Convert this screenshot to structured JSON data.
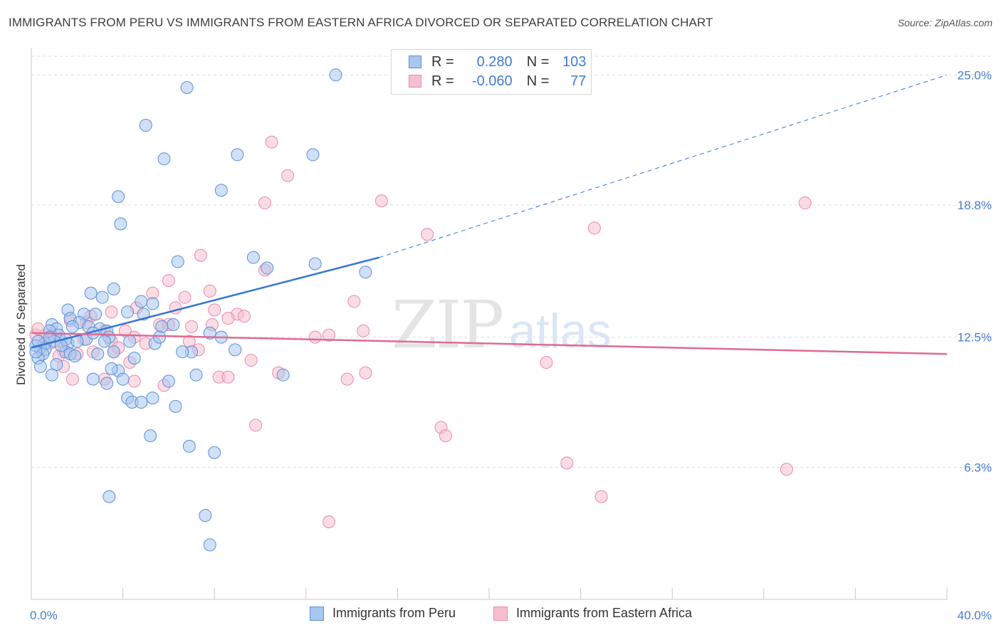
{
  "title": "IMMIGRANTS FROM PERU VS IMMIGRANTS FROM EASTERN AFRICA DIVORCED OR SEPARATED CORRELATION CHART",
  "source": "Source: ZipAtlas.com",
  "watermark": {
    "zip": "ZIP",
    "atlas": "atlas"
  },
  "legend": {
    "r_label": "R =",
    "n_label": "N =",
    "series1": {
      "r": "0.280",
      "n": "103"
    },
    "series2": {
      "r": "-0.060",
      "n": "77"
    }
  },
  "colors": {
    "peru_fill": "#a9c6ee",
    "peru_stroke": "#5a8fd8",
    "peru_line": "#3574d4",
    "africa_fill": "#f6bfd0",
    "africa_stroke": "#e88aa8",
    "africa_line": "#e06a93",
    "axis_text": "#4a7bd0",
    "grid": "#dcdcdc"
  },
  "chart_data": {
    "type": "scatter",
    "title": "IMMIGRANTS FROM PERU VS IMMIGRANTS FROM EASTERN AFRICA DIVORCED OR SEPARATED CORRELATION CHART",
    "xlabel": "",
    "ylabel": "Divorced or Separated",
    "xlim": [
      0,
      40
    ],
    "ylim": [
      0,
      26.3
    ],
    "x_tick_labels": [
      "0.0%",
      "40.0%"
    ],
    "y_ticks": [
      6.3,
      12.5,
      18.8,
      25.0
    ],
    "y_tick_labels": [
      "6.3%",
      "12.5%",
      "18.8%",
      "25.0%"
    ],
    "grid": true,
    "legend_position": "top-center",
    "series": [
      {
        "name": "Immigrants from Peru",
        "R": 0.28,
        "N": 103,
        "trend": {
          "x": [
            0,
            15.2
          ],
          "y": [
            12.0,
            16.3
          ],
          "dashed_to": [
            40,
            25.0
          ]
        },
        "points": [
          [
            13.3,
            25.0
          ],
          [
            6.8,
            24.4
          ],
          [
            5.0,
            22.6
          ],
          [
            5.8,
            21.0
          ],
          [
            9.0,
            21.2
          ],
          [
            12.3,
            21.2
          ],
          [
            8.3,
            19.5
          ],
          [
            3.8,
            19.2
          ],
          [
            3.9,
            17.9
          ],
          [
            6.4,
            16.1
          ],
          [
            9.7,
            16.3
          ],
          [
            10.3,
            15.8
          ],
          [
            12.4,
            16.0
          ],
          [
            14.6,
            15.6
          ],
          [
            3.6,
            14.8
          ],
          [
            2.6,
            14.6
          ],
          [
            3.1,
            14.4
          ],
          [
            4.8,
            14.2
          ],
          [
            5.3,
            14.1
          ],
          [
            4.2,
            13.7
          ],
          [
            1.6,
            13.8
          ],
          [
            2.3,
            13.6
          ],
          [
            2.8,
            13.6
          ],
          [
            1.7,
            13.4
          ],
          [
            2.1,
            13.2
          ],
          [
            1.8,
            13.0
          ],
          [
            2.5,
            13.0
          ],
          [
            0.9,
            13.1
          ],
          [
            1.1,
            12.9
          ],
          [
            0.8,
            12.8
          ],
          [
            3.0,
            12.9
          ],
          [
            3.3,
            12.8
          ],
          [
            5.7,
            13.0
          ],
          [
            6.2,
            13.1
          ],
          [
            7.8,
            12.7
          ],
          [
            1.2,
            12.6
          ],
          [
            1.5,
            12.4
          ],
          [
            2.4,
            12.4
          ],
          [
            3.4,
            12.5
          ],
          [
            1.0,
            12.3
          ],
          [
            1.6,
            12.2
          ],
          [
            0.6,
            12.2
          ],
          [
            2.0,
            12.3
          ],
          [
            3.2,
            12.3
          ],
          [
            4.3,
            12.3
          ],
          [
            5.4,
            12.2
          ],
          [
            5.6,
            12.5
          ],
          [
            8.3,
            12.5
          ],
          [
            0.4,
            12.0
          ],
          [
            0.2,
            12.1
          ],
          [
            0.6,
            11.9
          ],
          [
            1.5,
            11.8
          ],
          [
            1.7,
            11.7
          ],
          [
            2.9,
            11.7
          ],
          [
            3.6,
            11.8
          ],
          [
            0.5,
            11.7
          ],
          [
            0.3,
            11.5
          ],
          [
            7.0,
            11.8
          ],
          [
            6.6,
            11.8
          ],
          [
            8.9,
            11.9
          ],
          [
            4.5,
            11.5
          ],
          [
            1.1,
            11.2
          ],
          [
            0.4,
            11.1
          ],
          [
            3.8,
            10.9
          ],
          [
            3.5,
            11.0
          ],
          [
            7.2,
            10.7
          ],
          [
            11.0,
            10.7
          ],
          [
            0.9,
            10.7
          ],
          [
            2.7,
            10.5
          ],
          [
            4.0,
            10.5
          ],
          [
            6.0,
            10.4
          ],
          [
            3.3,
            10.3
          ],
          [
            4.2,
            9.6
          ],
          [
            5.3,
            9.6
          ],
          [
            4.4,
            9.4
          ],
          [
            4.8,
            9.4
          ],
          [
            6.3,
            9.2
          ],
          [
            5.2,
            7.8
          ],
          [
            6.9,
            7.3
          ],
          [
            8.0,
            7.0
          ],
          [
            3.4,
            4.9
          ],
          [
            7.6,
            4.0
          ],
          [
            7.8,
            2.6
          ],
          [
            0.3,
            12.3
          ],
          [
            1.3,
            12.1
          ],
          [
            2.7,
            12.7
          ],
          [
            4.9,
            13.6
          ],
          [
            0.8,
            12.5
          ],
          [
            0.2,
            11.8
          ],
          [
            1.9,
            11.6
          ]
        ]
      },
      {
        "name": "Immigrants from Eastern Africa",
        "R": -0.06,
        "N": 77,
        "trend": {
          "x": [
            0,
            40
          ],
          "y": [
            12.7,
            11.7
          ]
        },
        "points": [
          [
            10.5,
            21.8
          ],
          [
            11.2,
            20.2
          ],
          [
            15.3,
            19.0
          ],
          [
            10.2,
            18.9
          ],
          [
            33.8,
            18.9
          ],
          [
            17.3,
            17.4
          ],
          [
            24.6,
            17.7
          ],
          [
            7.4,
            16.4
          ],
          [
            10.2,
            15.7
          ],
          [
            6.0,
            15.2
          ],
          [
            7.8,
            14.7
          ],
          [
            5.3,
            14.6
          ],
          [
            6.7,
            14.4
          ],
          [
            14.1,
            14.2
          ],
          [
            4.6,
            13.9
          ],
          [
            6.3,
            13.9
          ],
          [
            8.0,
            13.8
          ],
          [
            9.0,
            13.6
          ],
          [
            9.3,
            13.5
          ],
          [
            8.6,
            13.4
          ],
          [
            3.5,
            13.7
          ],
          [
            2.6,
            13.5
          ],
          [
            1.7,
            13.3
          ],
          [
            2.4,
            13.2
          ],
          [
            5.6,
            13.1
          ],
          [
            6.0,
            13.1
          ],
          [
            7.0,
            13.0
          ],
          [
            7.9,
            13.1
          ],
          [
            4.1,
            12.8
          ],
          [
            3.2,
            12.8
          ],
          [
            14.5,
            12.8
          ],
          [
            13.0,
            12.6
          ],
          [
            0.6,
            12.6
          ],
          [
            0.9,
            12.5
          ],
          [
            4.5,
            12.5
          ],
          [
            0.2,
            12.6
          ],
          [
            1.3,
            12.3
          ],
          [
            0.8,
            12.2
          ],
          [
            3.5,
            12.3
          ],
          [
            5.0,
            12.2
          ],
          [
            3.8,
            12.0
          ],
          [
            7.3,
            11.9
          ],
          [
            1.4,
            11.8
          ],
          [
            2.7,
            11.8
          ],
          [
            2.0,
            11.7
          ],
          [
            3.6,
            11.8
          ],
          [
            1.2,
            11.6
          ],
          [
            0.4,
            11.9
          ],
          [
            9.6,
            11.4
          ],
          [
            4.3,
            11.3
          ],
          [
            1.4,
            11.1
          ],
          [
            22.5,
            11.3
          ],
          [
            10.8,
            10.8
          ],
          [
            14.6,
            10.8
          ],
          [
            8.2,
            10.6
          ],
          [
            8.6,
            10.6
          ],
          [
            13.8,
            10.5
          ],
          [
            1.8,
            10.5
          ],
          [
            3.2,
            10.5
          ],
          [
            4.5,
            10.4
          ],
          [
            5.8,
            10.2
          ],
          [
            9.8,
            8.3
          ],
          [
            17.9,
            8.2
          ],
          [
            18.1,
            7.8
          ],
          [
            23.4,
            6.5
          ],
          [
            33.0,
            6.2
          ],
          [
            24.9,
            4.9
          ],
          [
            13.0,
            3.7
          ],
          [
            2.3,
            12.4
          ],
          [
            0.3,
            12.9
          ],
          [
            6.9,
            12.3
          ],
          [
            12.4,
            12.5
          ]
        ]
      }
    ]
  },
  "bottom_legend": {
    "series1": "Immigrants from Peru",
    "series2": "Immigrants from Eastern Africa"
  }
}
